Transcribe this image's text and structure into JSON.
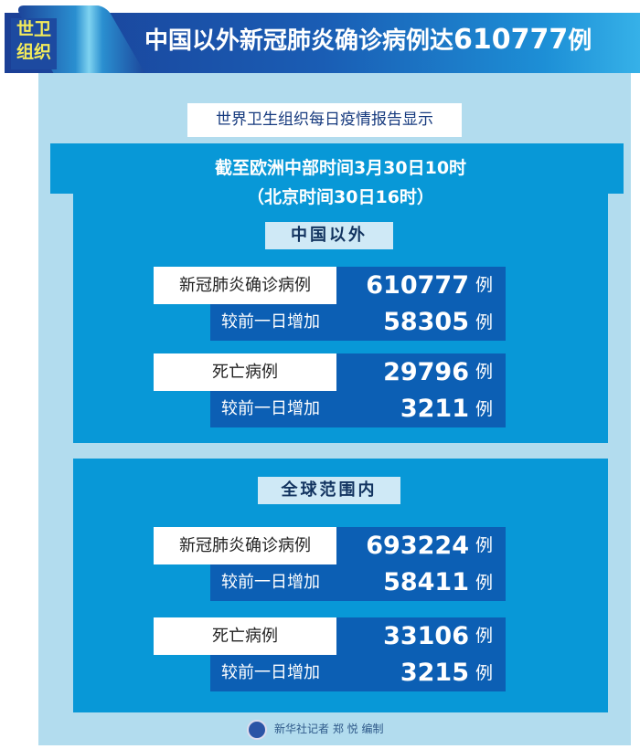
{
  "header": {
    "badge_line1": "世卫",
    "badge_line2": "组织",
    "title": "中国以外新冠肺炎确诊病例达",
    "title_number": "610777",
    "title_unit": "例"
  },
  "subtitle": "世界卫生组织每日疫情报告显示",
  "date": {
    "line1": "截至欧洲中部时间3月30日10时",
    "line2": "（北京时间30日16时）"
  },
  "sections": [
    {
      "title": "中国以外",
      "rows": [
        {
          "label": "新冠肺炎确诊病例",
          "value": "610777",
          "unit": "例",
          "sub_label": "较前一日增加",
          "sub_value": "58305",
          "sub_unit": "例"
        },
        {
          "label": "死亡病例",
          "value": "29796",
          "unit": "例",
          "sub_label": "较前一日增加",
          "sub_value": "3211",
          "sub_unit": "例"
        }
      ]
    },
    {
      "title": "全球范围内",
      "rows": [
        {
          "label": "新冠肺炎确诊病例",
          "value": "693224",
          "unit": "例",
          "sub_label": "较前一日增加",
          "sub_value": "58411",
          "sub_unit": "例"
        },
        {
          "label": "死亡病例",
          "value": "33106",
          "unit": "例",
          "sub_label": "较前一日增加",
          "sub_value": "3215",
          "sub_unit": "例"
        }
      ]
    }
  ],
  "footer": {
    "credit": "新华社记者 郑 悦 编制",
    "logo_icon": "xinhua-logo-icon"
  },
  "colors": {
    "dark_blue": "#0c5fb4",
    "mid_blue": "#0898d7",
    "panel": "#b2dcee",
    "badge_text": "#f4ec5a"
  }
}
